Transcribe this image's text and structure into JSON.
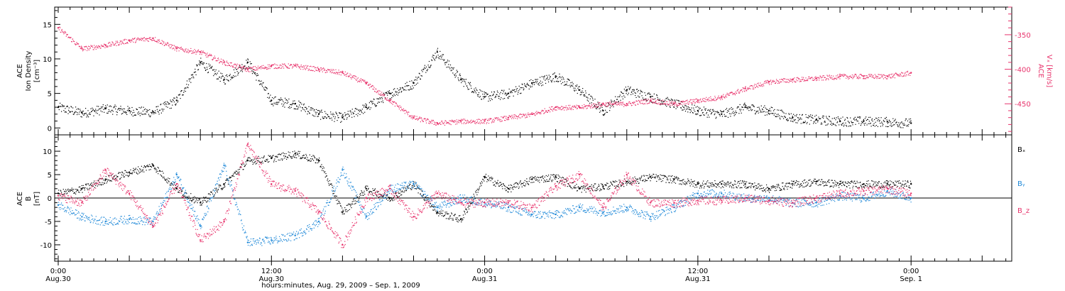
{
  "chart_data": [
    {
      "type": "scatter",
      "panel": "top",
      "ylabel_lines": [
        "ACE",
        "Ion Density",
        "[cm⁻³]"
      ],
      "y2label_lines": [
        "ACE",
        "Vₓ [km/s]"
      ],
      "ylim": [
        -1,
        17.5
      ],
      "yticks": [
        "0",
        "5",
        "10",
        "15"
      ],
      "y2lim": [
        -495,
        -310
      ],
      "y2ticks": [
        "-350",
        "-400",
        "-450"
      ],
      "series": [
        {
          "axis": "left",
          "color": "#000000",
          "x": [
            0,
            2,
            4,
            6,
            8,
            10,
            12,
            14,
            16,
            18,
            20,
            22,
            24,
            26,
            28,
            30,
            32,
            34,
            36,
            38,
            40,
            42,
            44,
            46,
            48,
            50,
            52,
            54,
            56,
            58,
            60,
            62,
            64,
            66,
            68,
            70,
            72
          ],
          "y": [
            3.0,
            2.2,
            2.8,
            2.5,
            2.3,
            4.0,
            9.5,
            7.0,
            9.5,
            4.0,
            3.5,
            2.0,
            1.5,
            3.0,
            5.0,
            6.5,
            11.0,
            7.0,
            4.5,
            5.0,
            6.5,
            7.5,
            5.5,
            2.5,
            5.5,
            4.5,
            3.5,
            2.5,
            2.0,
            3.0,
            2.5,
            1.5,
            1.2,
            1.0,
            1.0,
            0.9,
            0.7
          ]
        },
        {
          "axis": "right",
          "color": "#e8336c",
          "x": [
            0,
            2,
            4,
            6,
            8,
            10,
            12,
            14,
            16,
            18,
            20,
            22,
            24,
            26,
            28,
            30,
            32,
            34,
            36,
            38,
            40,
            42,
            44,
            46,
            48,
            50,
            52,
            54,
            56,
            58,
            60,
            62,
            64,
            66,
            68,
            70,
            72
          ],
          "y": [
            -340,
            -370,
            -365,
            -358,
            -355,
            -370,
            -375,
            -390,
            -400,
            -395,
            -395,
            -400,
            -405,
            -420,
            -445,
            -470,
            -478,
            -475,
            -475,
            -470,
            -465,
            -455,
            -455,
            -450,
            -450,
            -445,
            -450,
            -445,
            -440,
            -428,
            -418,
            -415,
            -413,
            -410,
            -410,
            -410,
            -405
          ]
        }
      ]
    },
    {
      "type": "scatter",
      "panel": "bottom",
      "ylabel_lines": [
        "ACE",
        "B",
        "[nT]"
      ],
      "ylim": [
        -13.5,
        13.5
      ],
      "yticks": [
        "10",
        "5",
        "0",
        "-5",
        "-10"
      ],
      "legend": [
        "Bₓ",
        "Bᵧ",
        "B_z"
      ],
      "series": [
        {
          "name": "Bₓ",
          "color": "#000000",
          "x": [
            0,
            2,
            4,
            6,
            8,
            10,
            12,
            14,
            16,
            18,
            20,
            22,
            24,
            26,
            28,
            30,
            32,
            34,
            36,
            38,
            40,
            42,
            44,
            46,
            48,
            50,
            52,
            54,
            56,
            58,
            60,
            62,
            64,
            66,
            68,
            70,
            72
          ],
          "y": [
            1.0,
            2.0,
            4.0,
            5.5,
            7.0,
            2.0,
            -1.0,
            3.0,
            8.0,
            8.5,
            9.5,
            8.0,
            -3.0,
            2.0,
            0.0,
            3.0,
            -3.0,
            -4.5,
            4.5,
            2.0,
            4.0,
            4.5,
            2.0,
            2.5,
            3.5,
            4.5,
            4.0,
            3.0,
            3.0,
            3.0,
            2.0,
            3.0,
            3.5,
            3.0,
            3.0,
            3.0,
            3.0
          ]
        },
        {
          "name": "Bᵧ",
          "color": "#1e88d8",
          "x": [
            0,
            2,
            4,
            6,
            8,
            10,
            12,
            14,
            16,
            18,
            20,
            22,
            24,
            26,
            28,
            30,
            32,
            34,
            36,
            38,
            40,
            42,
            44,
            46,
            48,
            50,
            52,
            54,
            56,
            58,
            60,
            62,
            64,
            66,
            68,
            70,
            72
          ],
          "y": [
            -1.5,
            -4.0,
            -5.0,
            -4.5,
            -5.0,
            5.0,
            -6.0,
            7.0,
            -9.5,
            -9.0,
            -8.0,
            -5.0,
            6.0,
            -4.0,
            2.0,
            3.0,
            -2.0,
            0.0,
            -1.0,
            -2.0,
            -3.5,
            -3.5,
            -2.0,
            -3.0,
            -2.0,
            -4.0,
            -2.0,
            1.0,
            1.0,
            0.0,
            0.0,
            -1.0,
            -1.0,
            0.5,
            0.0,
            1.5,
            0.0
          ]
        },
        {
          "name": "B_z",
          "color": "#e8336c",
          "x": [
            0,
            2,
            4,
            6,
            8,
            10,
            12,
            14,
            16,
            18,
            20,
            22,
            24,
            26,
            28,
            30,
            32,
            34,
            36,
            38,
            40,
            42,
            44,
            46,
            48,
            50,
            52,
            54,
            56,
            58,
            60,
            62,
            64,
            66,
            68,
            70,
            72
          ],
          "y": [
            0.5,
            -1.0,
            6.0,
            1.0,
            -6.0,
            3.0,
            -9.0,
            -5.0,
            11.5,
            3.0,
            1.5,
            -3.0,
            -10.0,
            0.0,
            2.0,
            -4.0,
            1.0,
            -1.0,
            -1.0,
            -1.0,
            -2.0,
            2.5,
            5.0,
            -2.0,
            5.0,
            -1.0,
            -1.0,
            -0.5,
            -0.5,
            0.0,
            -0.5,
            -1.0,
            0.0,
            1.0,
            1.5,
            2.0,
            1.0
          ]
        }
      ]
    }
  ],
  "x_axis": {
    "xlabel": "hours:minutes, Aug. 29, 2009 – Sep. 1, 2009",
    "xlim": [
      -0.3,
      80.5
    ],
    "ticks": [
      {
        "x": 0,
        "top": "0:00",
        "bottom": "Aug.30"
      },
      {
        "x": 18,
        "top": "12:00",
        "bottom": "Aug.30"
      },
      {
        "x": 36,
        "top": "0:00",
        "bottom": "Aug.31"
      },
      {
        "x": 54,
        "top": "12:00",
        "bottom": "Aug.31"
      },
      {
        "x": 72,
        "top": "0:00",
        "bottom": "Sep. 1"
      }
    ]
  }
}
